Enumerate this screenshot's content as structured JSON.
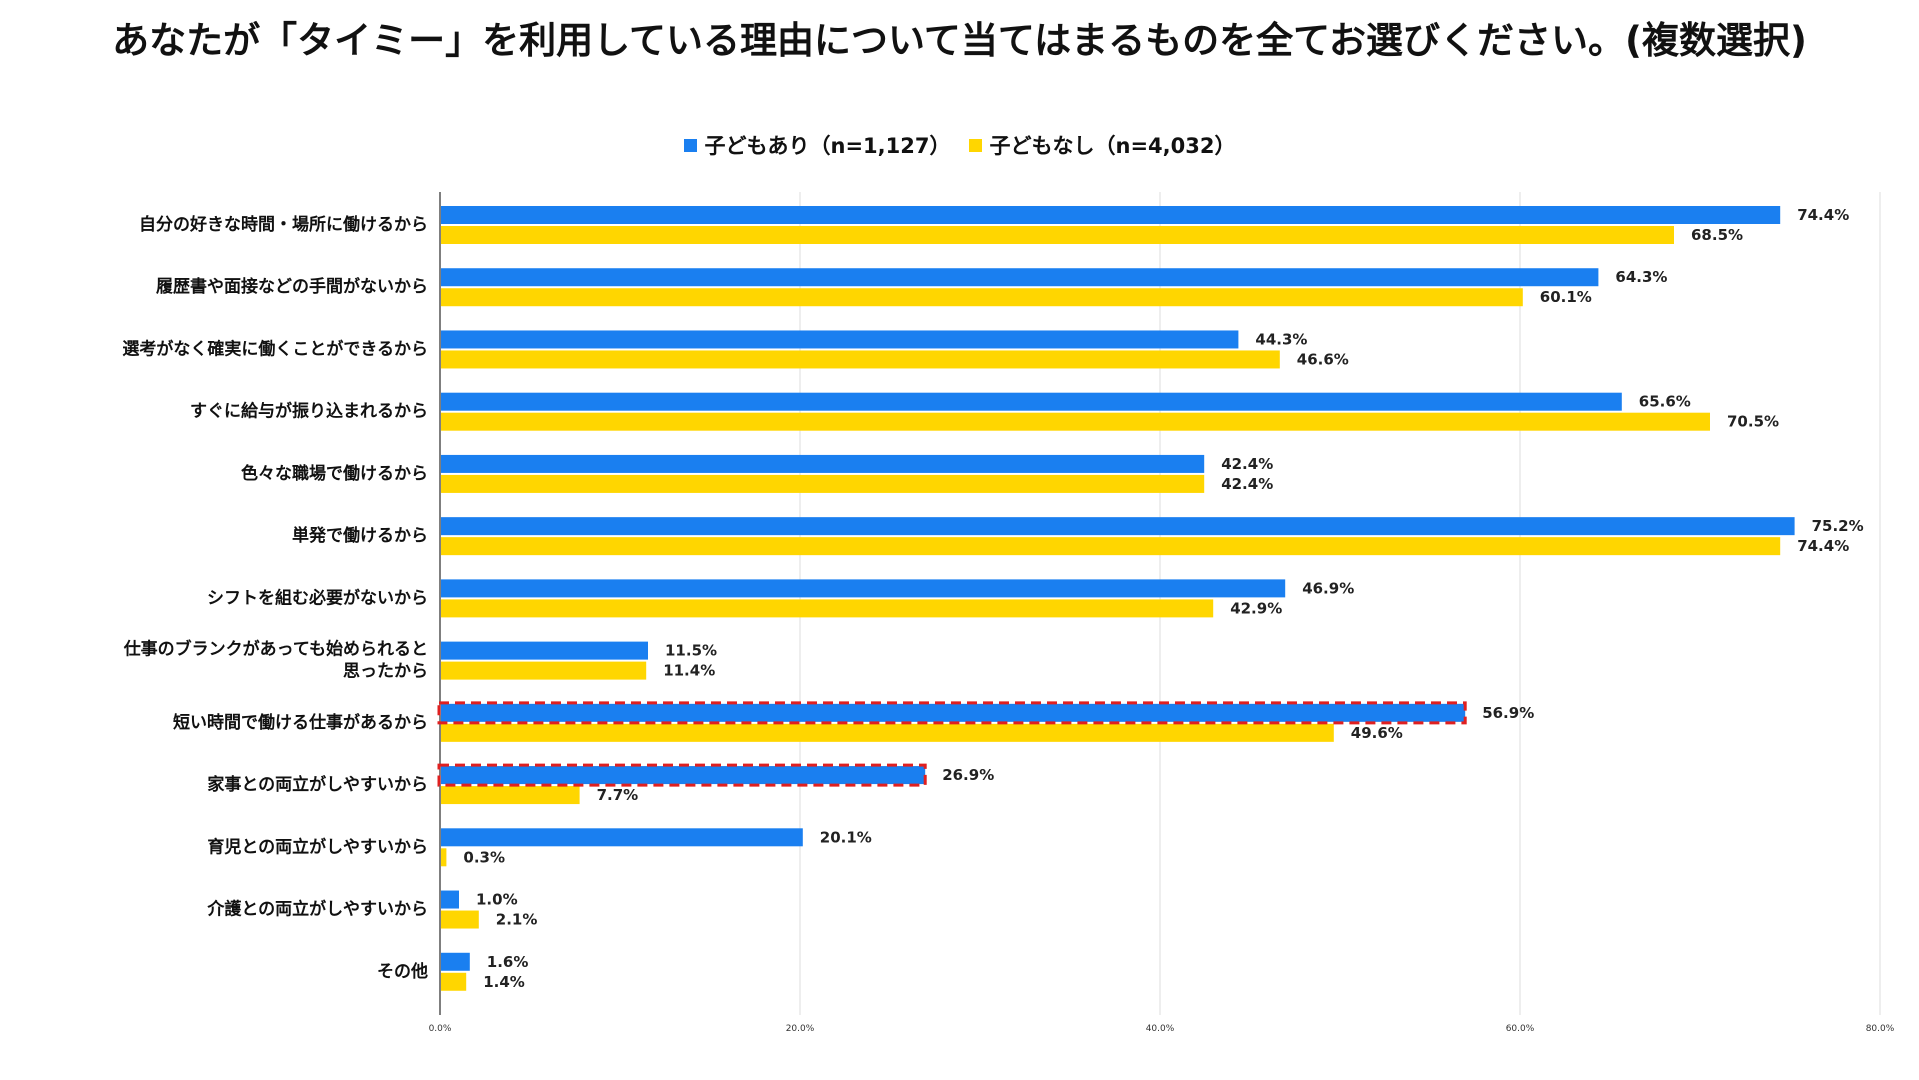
{
  "chart_data": {
    "type": "bar",
    "orientation": "horizontal",
    "title": "あなたが「タイミー」を利用している理由について当てはまるものを全てお選びください。(複数選択)",
    "categories": [
      "自分の好きな時間・場所に働けるから",
      "履歴書や面接などの手間がないから",
      "選考がなく確実に働くことができるから",
      "すぐに給与が振り込まれるから",
      "色々な職場で働けるから",
      "単発で働けるから",
      "シフトを組む必要がないから",
      [
        "仕事のブランクがあっても始められると",
        "思ったから"
      ],
      "短い時間で働ける仕事があるから",
      "家事との両立がしやすいから",
      "育児との両立がしやすいから",
      "介護との両立がしやすいから",
      "その他"
    ],
    "series": [
      {
        "name": "子どもあり（n=1,127）",
        "color": "#1a7ff0",
        "values": [
          74.4,
          64.3,
          44.3,
          65.6,
          42.4,
          75.2,
          46.9,
          11.5,
          56.9,
          26.9,
          20.1,
          1.0,
          1.6
        ],
        "labels": [
          "74.4%",
          "64.3%",
          "44.3%",
          "65.6%",
          "42.4%",
          "75.2%",
          "46.9%",
          "11.5%",
          "56.9%",
          "26.9%",
          "20.1%",
          "1.0%",
          "1.6%"
        ]
      },
      {
        "name": "子どもなし（n=4,032）",
        "color": "#ffd600",
        "values": [
          68.5,
          60.1,
          46.6,
          70.5,
          42.4,
          74.4,
          42.9,
          11.4,
          49.6,
          7.7,
          0.3,
          2.1,
          1.4
        ],
        "labels": [
          "68.5%",
          "60.1%",
          "46.6%",
          "70.5%",
          "42.4%",
          "74.4%",
          "42.9%",
          "11.4%",
          "49.6%",
          "7.7%",
          "0.3%",
          "2.1%",
          "1.4%"
        ]
      }
    ],
    "highlighted": [
      {
        "category_index": 8,
        "series_index": 0
      },
      {
        "category_index": 9,
        "series_index": 0
      }
    ],
    "highlight_color": "#e02020",
    "xlim": [
      0,
      80
    ],
    "xticks": [
      0,
      20,
      40,
      60,
      80
    ],
    "xtick_labels": [
      "0.0%",
      "20.0%",
      "40.0%",
      "60.0%",
      "80.0%"
    ],
    "grid": true,
    "legend_position": "top-center"
  }
}
